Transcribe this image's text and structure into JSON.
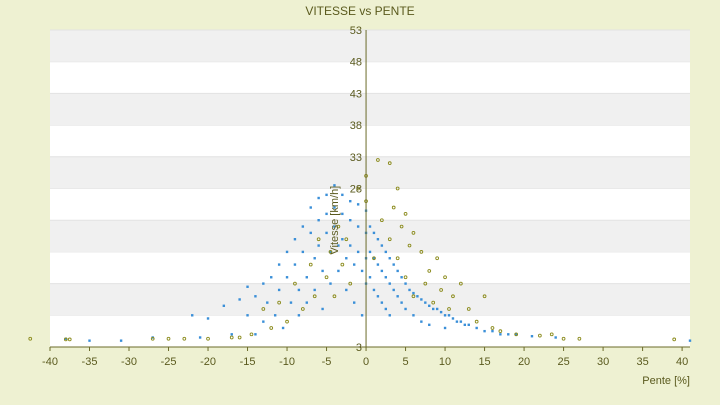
{
  "chart_data": {
    "type": "scatter",
    "title": "VITESSE vs PENTE",
    "xlabel": "Pente [%]",
    "ylabel": "Vitesse [km/h]",
    "xlim": [
      -40,
      41
    ],
    "ylim": [
      3,
      53
    ],
    "x_ticks": [
      "-40",
      "-35",
      "-30",
      "-25",
      "-20",
      "-15",
      "-10",
      "-5",
      "0",
      "5",
      "10",
      "15",
      "20",
      "25",
      "30",
      "35",
      "40"
    ],
    "y_ticks": [
      "3",
      "8",
      "13",
      "18",
      "23",
      "28",
      "33",
      "38",
      "43",
      "48",
      "53"
    ],
    "y_ticks_drawn": [
      "3",
      "28",
      "33",
      "38",
      "43",
      "48",
      "53"
    ],
    "grid": true,
    "legend": "none",
    "colors": {
      "background": "#eef1d2",
      "plot_area": "#ffffff",
      "band": "#f0f0f0",
      "axis": "#6b6b2a",
      "text": "#5a5a1e",
      "series_blue": "#3a8fd8",
      "series_olive": "#8a8a1a"
    },
    "series": [
      {
        "color": "#3a8fd8",
        "points": [
          [
            -38.0,
            4.3
          ],
          [
            -35.0,
            4.0
          ],
          [
            -31.0,
            4.0
          ],
          [
            -27.0,
            4.5
          ],
          [
            -22.0,
            8.0
          ],
          [
            -21.0,
            4.5
          ],
          [
            -20.0,
            7.5
          ],
          [
            -18.0,
            9.5
          ],
          [
            -17.0,
            5.0
          ],
          [
            -16.0,
            10.5
          ],
          [
            -15.0,
            12.5
          ],
          [
            -15.0,
            8.0
          ],
          [
            -14.0,
            11.0
          ],
          [
            -14.0,
            5.0
          ],
          [
            -13.0,
            7.0
          ],
          [
            -13.0,
            13.0
          ],
          [
            -12.5,
            10.0
          ],
          [
            -12.0,
            14.0
          ],
          [
            -11.5,
            8.0
          ],
          [
            -11.0,
            16.0
          ],
          [
            -11.0,
            12.0
          ],
          [
            -10.5,
            6.0
          ],
          [
            -10.0,
            18.0
          ],
          [
            -10.0,
            14.0
          ],
          [
            -9.5,
            10.0
          ],
          [
            -9.0,
            20.0
          ],
          [
            -9.0,
            16.0
          ],
          [
            -8.5,
            12.0
          ],
          [
            -8.5,
            8.0
          ],
          [
            -8.0,
            22.0
          ],
          [
            -8.0,
            18.0
          ],
          [
            -7.5,
            14.0
          ],
          [
            -7.5,
            10.0
          ],
          [
            -7.0,
            25.0
          ],
          [
            -7.0,
            21.0
          ],
          [
            -6.5,
            17.0
          ],
          [
            -6.5,
            12.0
          ],
          [
            -6.0,
            26.5
          ],
          [
            -6.0,
            23.0
          ],
          [
            -6.0,
            19.0
          ],
          [
            -5.5,
            15.0
          ],
          [
            -5.5,
            9.0
          ],
          [
            -5.0,
            27.0
          ],
          [
            -5.0,
            24.0
          ],
          [
            -5.0,
            21.0
          ],
          [
            -4.5,
            18.0
          ],
          [
            -4.5,
            13.0
          ],
          [
            -4.0,
            28.5
          ],
          [
            -4.0,
            25.0
          ],
          [
            -4.0,
            22.0
          ],
          [
            -3.5,
            19.0
          ],
          [
            -3.5,
            15.0
          ],
          [
            -3.0,
            27.0
          ],
          [
            -3.0,
            24.0
          ],
          [
            -3.0,
            20.0
          ],
          [
            -2.5,
            17.0
          ],
          [
            -2.5,
            12.0
          ],
          [
            -2.0,
            26.0
          ],
          [
            -2.0,
            23.0
          ],
          [
            -2.0,
            19.0
          ],
          [
            -1.5,
            16.0
          ],
          [
            -1.5,
            10.0
          ],
          [
            -1.0,
            25.5
          ],
          [
            -1.0,
            22.0
          ],
          [
            -1.0,
            18.0
          ],
          [
            -0.5,
            15.0
          ],
          [
            -0.5,
            8.0
          ],
          [
            0.0,
            24.5
          ],
          [
            0.0,
            21.0
          ],
          [
            0.0,
            17.0
          ],
          [
            0.0,
            13.0
          ],
          [
            0.5,
            22.0
          ],
          [
            0.5,
            18.0
          ],
          [
            0.5,
            14.0
          ],
          [
            1.0,
            21.0
          ],
          [
            1.0,
            17.0
          ],
          [
            1.0,
            12.0
          ],
          [
            1.5,
            20.0
          ],
          [
            1.5,
            16.0
          ],
          [
            1.5,
            11.0
          ],
          [
            2.0,
            19.0
          ],
          [
            2.0,
            15.0
          ],
          [
            2.0,
            10.0
          ],
          [
            2.5,
            18.0
          ],
          [
            2.5,
            14.0
          ],
          [
            2.5,
            9.0
          ],
          [
            3.0,
            17.0
          ],
          [
            3.0,
            13.0
          ],
          [
            3.0,
            8.0
          ],
          [
            3.5,
            16.0
          ],
          [
            3.5,
            12.0
          ],
          [
            4.0,
            15.0
          ],
          [
            4.0,
            11.0
          ],
          [
            4.5,
            14.0
          ],
          [
            4.5,
            10.0
          ],
          [
            5.0,
            13.0
          ],
          [
            5.0,
            9.0
          ],
          [
            5.5,
            12.0
          ],
          [
            6.0,
            11.5
          ],
          [
            6.0,
            8.0
          ],
          [
            6.5,
            11.0
          ],
          [
            7.0,
            10.5
          ],
          [
            7.0,
            7.0
          ],
          [
            7.5,
            10.0
          ],
          [
            8.0,
            9.5
          ],
          [
            8.0,
            6.5
          ],
          [
            8.5,
            9.0
          ],
          [
            9.0,
            9.0
          ],
          [
            9.5,
            8.5
          ],
          [
            10.0,
            8.0
          ],
          [
            10.0,
            6.0
          ],
          [
            10.5,
            8.0
          ],
          [
            11.0,
            7.5
          ],
          [
            11.5,
            7.0
          ],
          [
            12.0,
            7.0
          ],
          [
            12.5,
            6.5
          ],
          [
            13.0,
            6.5
          ],
          [
            14.0,
            6.0
          ],
          [
            15.0,
            5.5
          ],
          [
            16.0,
            5.5
          ],
          [
            17.0,
            5.0
          ],
          [
            18.0,
            5.0
          ],
          [
            19.0,
            5.0
          ],
          [
            21.0,
            4.7
          ],
          [
            24.0,
            4.5
          ],
          [
            41.0,
            4.0
          ]
        ]
      },
      {
        "color": "#8a8a1a",
        "points": [
          [
            -42.5,
            4.3
          ],
          [
            -38.0,
            4.2
          ],
          [
            -37.5,
            4.2
          ],
          [
            -27.0,
            4.3
          ],
          [
            -25.0,
            4.3
          ],
          [
            -23.0,
            4.3
          ],
          [
            -20.0,
            4.3
          ],
          [
            -17.0,
            4.5
          ],
          [
            -16.0,
            4.5
          ],
          [
            -14.5,
            5.0
          ],
          [
            -13.0,
            9.0
          ],
          [
            -12.0,
            6.0
          ],
          [
            -11.0,
            10.0
          ],
          [
            -10.0,
            7.0
          ],
          [
            -9.0,
            13.0
          ],
          [
            -8.0,
            9.0
          ],
          [
            -7.0,
            16.0
          ],
          [
            -6.5,
            11.0
          ],
          [
            -6.0,
            20.0
          ],
          [
            -5.0,
            14.0
          ],
          [
            -4.5,
            18.0
          ],
          [
            -4.0,
            11.0
          ],
          [
            -3.5,
            22.0
          ],
          [
            -3.0,
            16.0
          ],
          [
            -2.5,
            20.0
          ],
          [
            -2.0,
            13.0
          ],
          [
            -1.0,
            28.0
          ],
          [
            0.0,
            30.0
          ],
          [
            0.0,
            26.0
          ],
          [
            1.0,
            17.0
          ],
          [
            1.5,
            32.5
          ],
          [
            2.0,
            23.0
          ],
          [
            3.0,
            32.0
          ],
          [
            3.0,
            20.0
          ],
          [
            3.5,
            25.0
          ],
          [
            4.0,
            28.0
          ],
          [
            4.0,
            17.0
          ],
          [
            4.5,
            22.0
          ],
          [
            5.0,
            24.0
          ],
          [
            5.0,
            14.0
          ],
          [
            5.5,
            19.0
          ],
          [
            6.0,
            21.0
          ],
          [
            6.0,
            11.0
          ],
          [
            7.0,
            18.0
          ],
          [
            7.5,
            13.0
          ],
          [
            8.0,
            15.0
          ],
          [
            8.5,
            10.0
          ],
          [
            9.0,
            17.0
          ],
          [
            9.5,
            12.0
          ],
          [
            10.0,
            14.0
          ],
          [
            10.5,
            9.0
          ],
          [
            11.0,
            11.0
          ],
          [
            12.0,
            13.0
          ],
          [
            13.0,
            9.0
          ],
          [
            14.0,
            7.0
          ],
          [
            15.0,
            11.0
          ],
          [
            16.0,
            6.0
          ],
          [
            17.0,
            5.5
          ],
          [
            19.0,
            5.0
          ],
          [
            22.0,
            4.8
          ],
          [
            23.5,
            5.0
          ],
          [
            25.0,
            4.3
          ],
          [
            27.0,
            4.3
          ],
          [
            39.0,
            4.2
          ]
        ]
      }
    ]
  }
}
